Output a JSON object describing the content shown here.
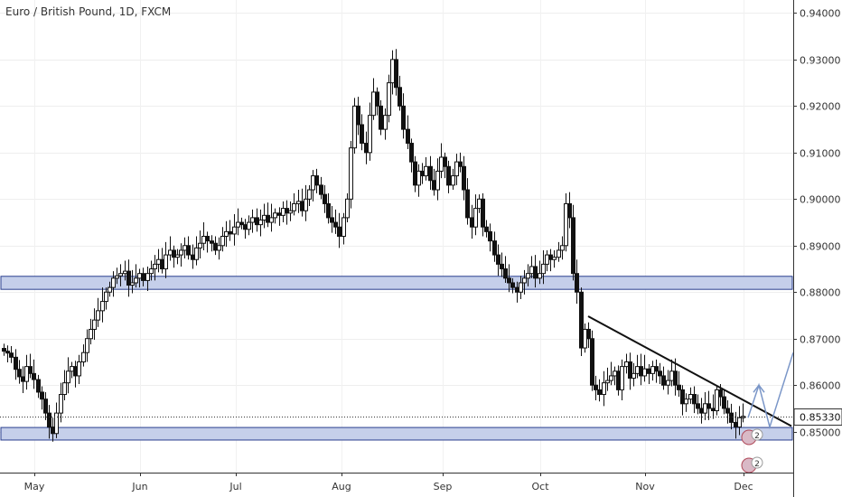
{
  "chart_data": {
    "type": "candlestick",
    "title": "Euro / British Pound, 1D, FXCM",
    "y_ticks": [
      "0.94000",
      "0.93000",
      "0.92000",
      "0.91000",
      "0.90000",
      "0.89000",
      "0.88000",
      "0.87000",
      "0.86000",
      "0.85000"
    ],
    "y_tick_values": [
      0.94,
      0.93,
      0.92,
      0.91,
      0.9,
      0.89,
      0.88,
      0.87,
      0.86,
      0.85
    ],
    "ylim": [
      0.8412,
      0.9428
    ],
    "x_ticks": [
      "May",
      "Jun",
      "Jul",
      "Aug",
      "Sep",
      "Oct",
      "Nov",
      "Dec"
    ],
    "last_price_label": "0.85330",
    "last_price": 0.8533,
    "zones": [
      {
        "from": 0.8806,
        "to": 0.8834,
        "color": "#c5cfea"
      },
      {
        "from": 0.8482,
        "to": 0.8509,
        "color": "#c5cfea"
      }
    ],
    "trendline": [
      [
        0.8748,
        0.8533
      ]
    ],
    "badge_text": [
      "2",
      "2"
    ],
    "up_color": "#ffffff",
    "down_color": "#111111",
    "closes": [
      0.8673,
      0.8669,
      0.866,
      0.8634,
      0.8618,
      0.8608,
      0.864,
      0.8625,
      0.8612,
      0.8585,
      0.857,
      0.854,
      0.851,
      0.8496,
      0.854,
      0.858,
      0.8605,
      0.863,
      0.864,
      0.862,
      0.865,
      0.867,
      0.87,
      0.872,
      0.874,
      0.876,
      0.878,
      0.88,
      0.881,
      0.883,
      0.8835,
      0.884,
      0.8845,
      0.8815,
      0.882,
      0.883,
      0.884,
      0.8825,
      0.884,
      0.885,
      0.886,
      0.887,
      0.885,
      0.888,
      0.889,
      0.8875,
      0.888,
      0.889,
      0.89,
      0.888,
      0.887,
      0.8895,
      0.8905,
      0.892,
      0.891,
      0.8905,
      0.889,
      0.89,
      0.892,
      0.893,
      0.8925,
      0.894,
      0.895,
      0.8945,
      0.8935,
      0.895,
      0.896,
      0.8945,
      0.8955,
      0.8965,
      0.895,
      0.896,
      0.897,
      0.8965,
      0.898,
      0.897,
      0.8975,
      0.899,
      0.8995,
      0.8975,
      0.9,
      0.902,
      0.905,
      0.903,
      0.901,
      0.899,
      0.896,
      0.895,
      0.894,
      0.892,
      0.896,
      0.9,
      0.911,
      0.92,
      0.916,
      0.912,
      0.91,
      0.918,
      0.923,
      0.92,
      0.915,
      0.918,
      0.925,
      0.93,
      0.924,
      0.92,
      0.915,
      0.912,
      0.908,
      0.903,
      0.906,
      0.905,
      0.907,
      0.904,
      0.902,
      0.906,
      0.909,
      0.907,
      0.903,
      0.905,
      0.908,
      0.907,
      0.902,
      0.896,
      0.894,
      0.898,
      0.9,
      0.894,
      0.893,
      0.891,
      0.888,
      0.886,
      0.885,
      0.883,
      0.882,
      0.881,
      0.88,
      0.882,
      0.883,
      0.884,
      0.8855,
      0.883,
      0.884,
      0.886,
      0.888,
      0.887,
      0.8875,
      0.889,
      0.89,
      0.899,
      0.896,
      0.884,
      0.88,
      0.868,
      0.872,
      0.87,
      0.86,
      0.859,
      0.858,
      0.8605,
      0.861,
      0.862,
      0.863,
      0.859,
      0.864,
      0.865,
      0.8615,
      0.8625,
      0.864,
      0.862,
      0.8635,
      0.8625,
      0.864,
      0.863,
      0.862,
      0.86,
      0.861,
      0.863,
      0.86,
      0.859,
      0.856,
      0.857,
      0.858,
      0.856,
      0.855,
      0.854,
      0.856,
      0.855,
      0.8545,
      0.859,
      0.8575,
      0.855,
      0.854,
      0.852,
      0.851,
      0.853,
      0.8533
    ]
  }
}
